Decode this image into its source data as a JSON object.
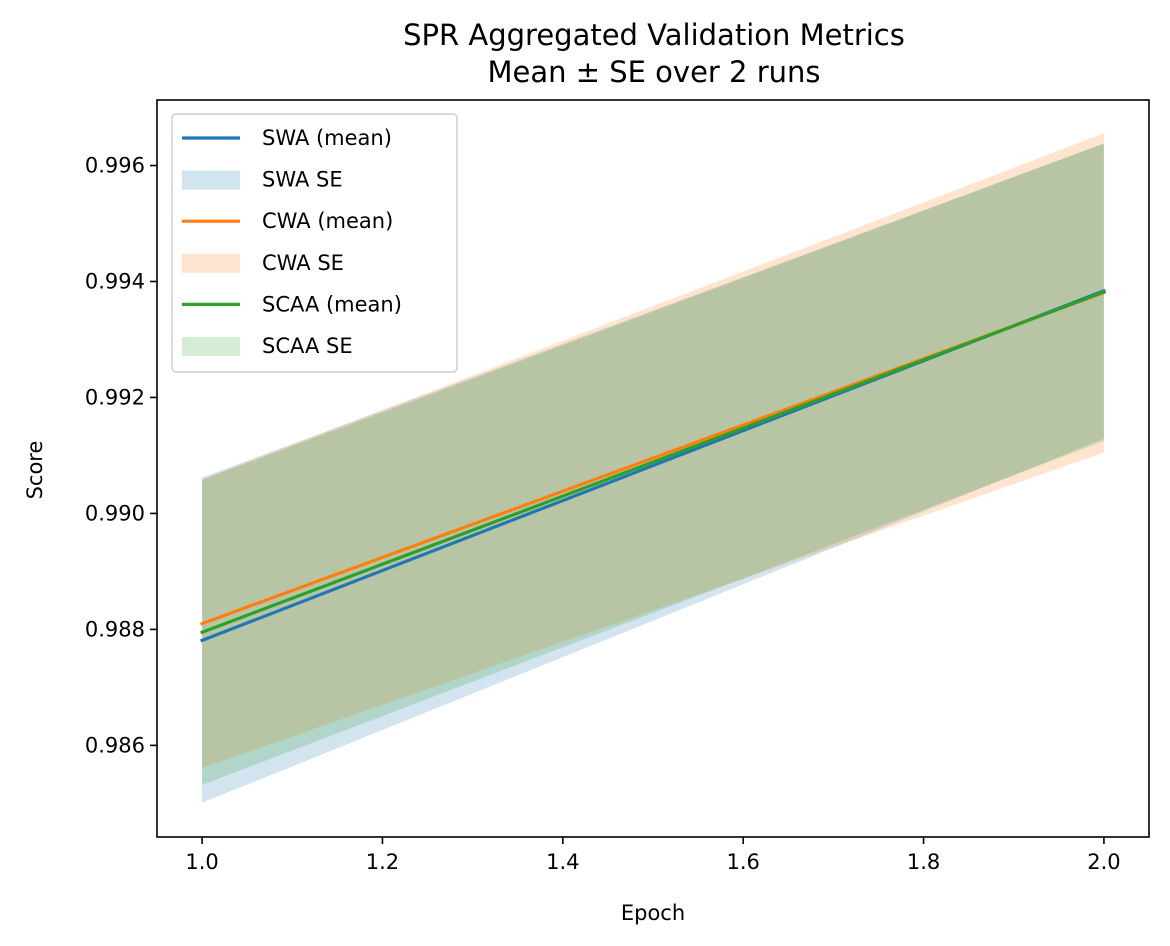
{
  "chart_data": {
    "type": "line",
    "title": "SPR Aggregated Validation Metrics",
    "subtitle": "Mean ± SE over 2 runs",
    "xlabel": "Epoch",
    "ylabel": "Score",
    "x": [
      1.0,
      2.0
    ],
    "xlim": [
      0.95,
      2.05
    ],
    "ylim": [
      0.98442,
      0.99713
    ],
    "xticks": [
      "1.0",
      "1.2",
      "1.4",
      "1.6",
      "1.8",
      "2.0"
    ],
    "yticks": [
      "0.986",
      "0.988",
      "0.990",
      "0.992",
      "0.994",
      "0.996"
    ],
    "grid": false,
    "legend_position": "upper-left",
    "series": [
      {
        "name": "SWA (mean)",
        "se_name": "SWA SE",
        "color": "#1f77b4",
        "values": [
          0.98781,
          0.99384
        ],
        "lower": [
          0.98501,
          0.99129
        ],
        "upper": [
          0.99062,
          0.99638
        ]
      },
      {
        "name": "CWA (mean)",
        "se_name": "CWA SE",
        "color": "#ff7f0e",
        "values": [
          0.9881,
          0.99381
        ],
        "lower": [
          0.98561,
          0.99105
        ],
        "upper": [
          0.99059,
          0.99656
        ]
      },
      {
        "name": "SCAA (mean)",
        "se_name": "SCAA SE",
        "color": "#2ca02c",
        "values": [
          0.98795,
          0.99382
        ],
        "lower": [
          0.98532,
          0.99125
        ],
        "upper": [
          0.99058,
          0.99638
        ]
      }
    ]
  }
}
